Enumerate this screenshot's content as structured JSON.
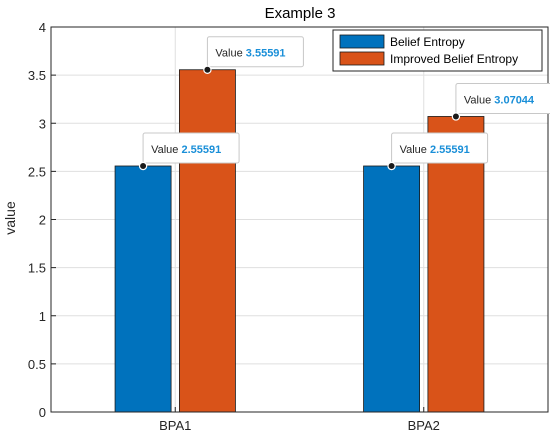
{
  "chart_data": {
    "type": "bar",
    "title": "Example 3",
    "xlabel": "",
    "ylabel": "value",
    "categories": [
      "BPA1",
      "BPA2"
    ],
    "series": [
      {
        "name": "Belief Entropy",
        "values": [
          2.55591,
          2.55591
        ],
        "color": "#0072BD"
      },
      {
        "name": "Improved Belief Entropy",
        "values": [
          3.55591,
          3.07044
        ],
        "color": "#D95319"
      }
    ],
    "ylim": [
      0,
      4
    ],
    "yticks": [
      "0",
      "0.5",
      "1",
      "1.5",
      "2",
      "2.5",
      "3",
      "3.5",
      "4"
    ],
    "grid": true,
    "legend_position": "top-right",
    "datatips": [
      {
        "label": "Value",
        "value": "2.55591",
        "series": 0,
        "category": 0
      },
      {
        "label": "Value",
        "value": "3.55591",
        "series": 1,
        "category": 0
      },
      {
        "label": "Value",
        "value": "2.55591",
        "series": 0,
        "category": 1
      },
      {
        "label": "Value",
        "value": "3.07044",
        "series": 1,
        "category": 1
      }
    ]
  }
}
